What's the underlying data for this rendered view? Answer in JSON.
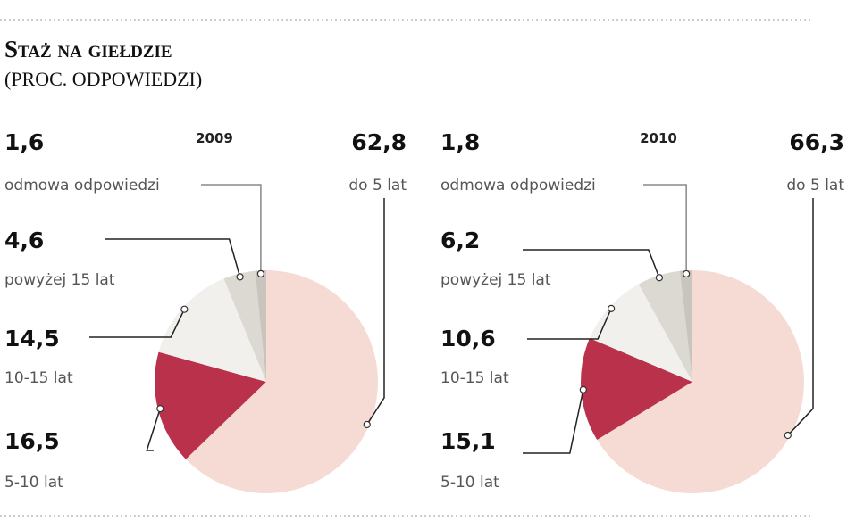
{
  "header": {
    "title": "Staż na giełdzie",
    "subtitle": "(proc. odpowiedzi)"
  },
  "chart_data": [
    {
      "type": "pie",
      "title": "2009",
      "categories": [
        "do 5 lat",
        "5-10 lat",
        "10-15 lat",
        "powyżej 15 lat",
        "odmowa odpowiedzi"
      ],
      "values": [
        62.8,
        16.5,
        14.5,
        4.6,
        1.6
      ],
      "value_labels": [
        "62,8",
        "16,5",
        "14,5",
        "4,6",
        "1,6"
      ],
      "colors": [
        "#f6dbd5",
        "#b9314b",
        "#f2f0ed",
        "#dcd9d3",
        "#c9c5be"
      ]
    },
    {
      "type": "pie",
      "title": "2010",
      "categories": [
        "do 5 lat",
        "5-10 lat",
        "10-15 lat",
        "powyżej 15 lat",
        "odmowa odpowiedzi"
      ],
      "values": [
        66.3,
        15.1,
        10.6,
        6.2,
        1.8
      ],
      "value_labels": [
        "66,3",
        "15,1",
        "10,6",
        "6,2",
        "1,8"
      ],
      "colors": [
        "#f6dbd5",
        "#b9314b",
        "#f2f0ed",
        "#dcd9d3",
        "#c9c5be"
      ]
    }
  ]
}
